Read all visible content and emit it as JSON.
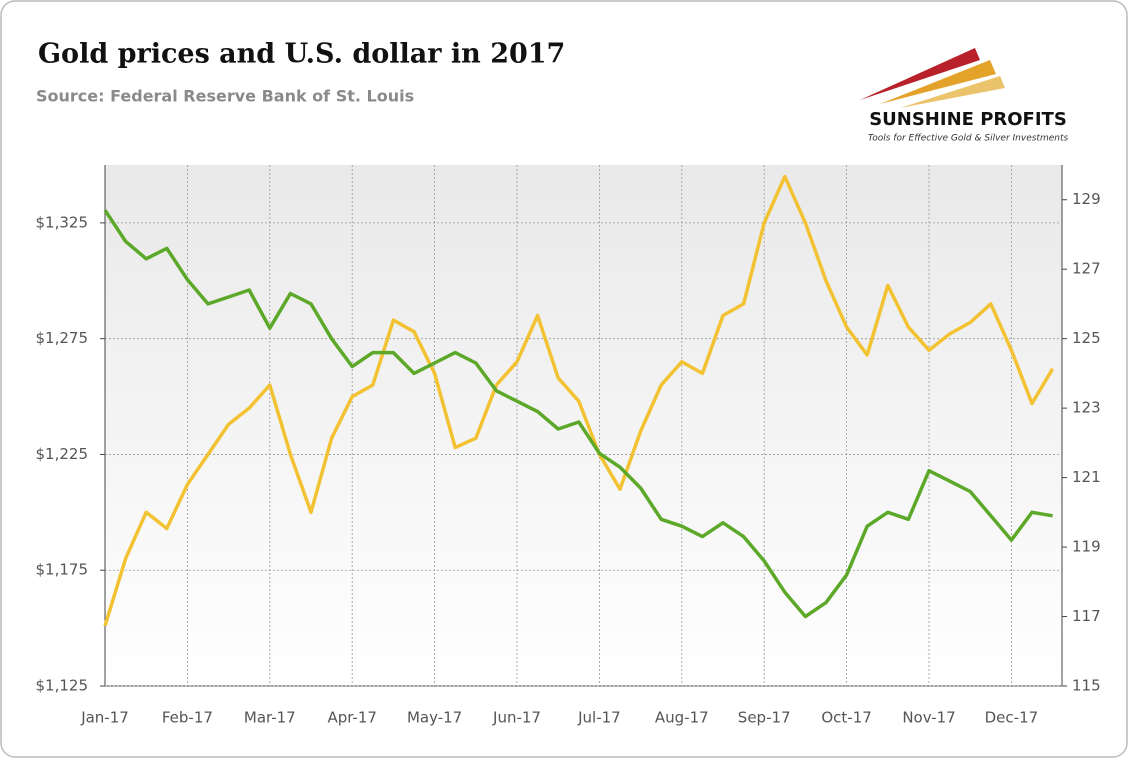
{
  "chart_data": {
    "type": "line",
    "title": "Gold prices and U.S. dollar in 2017",
    "subtitle": "Source: Federal Reserve Bank of St. Louis",
    "categories": [
      "Jan-17",
      null,
      null,
      null,
      "Feb-17",
      null,
      null,
      null,
      "Mar-17",
      null,
      null,
      null,
      "Apr-17",
      null,
      null,
      null,
      "May-17",
      null,
      null,
      null,
      "Jun-17",
      null,
      null,
      null,
      "Jul-17",
      null,
      null,
      null,
      "Aug-17",
      null,
      null,
      null,
      "Sep-17",
      null,
      null,
      null,
      "Oct-17",
      null,
      null,
      null,
      "Nov-17",
      null,
      null,
      null,
      "Dec-17",
      null,
      null
    ],
    "series": [
      {
        "color": "#f2c232",
        "values": [
          1151,
          1180,
          1200,
          1193,
          1212,
          1225,
          1238,
          1245,
          1255,
          1225,
          1200,
          1232,
          1250,
          1255,
          1283,
          1278,
          1260,
          1228,
          1232,
          1255,
          1265,
          1285,
          1258,
          1248,
          1225,
          1210,
          1235,
          1255,
          1265,
          1260,
          1285,
          1290,
          1325,
          1345,
          1325,
          1300,
          1280,
          1268,
          1298,
          1280,
          1270,
          1277,
          1282,
          1290,
          1270,
          1247,
          1262
        ]
      },
      {
        "color": "#5ca829",
        "axis": "y2",
        "values": [
          128.7,
          127.8,
          127.3,
          127.6,
          126.7,
          126.0,
          126.2,
          126.4,
          125.3,
          126.3,
          126.0,
          125.0,
          124.2,
          124.6,
          124.6,
          124.0,
          124.3,
          124.6,
          124.3,
          123.5,
          123.2,
          122.9,
          122.4,
          122.6,
          121.7,
          121.3,
          120.7,
          119.8,
          119.6,
          119.3,
          119.7,
          119.3,
          118.6,
          117.7,
          117.0,
          117.4,
          118.2,
          119.6,
          120.0,
          119.8,
          121.2,
          120.9,
          120.6,
          119.9,
          119.2,
          120.0,
          119.9
        ]
      }
    ],
    "ylim": [
      1125,
      1350
    ],
    "yticks": [
      {
        "value": 1125,
        "label": "$1,125"
      },
      {
        "value": 1175,
        "label": "$1,175"
      },
      {
        "value": 1225,
        "label": "$1,225"
      },
      {
        "value": 1275,
        "label": "$1,275"
      },
      {
        "value": 1325,
        "label": "$1,325"
      }
    ],
    "y2lim": [
      115,
      130
    ],
    "y2ticks": [
      115,
      117,
      119,
      121,
      123,
      125,
      127,
      129
    ],
    "grid": true
  },
  "logo": {
    "name": "SUNSHINE PROFITS",
    "tagline": "Tools for Effective Gold & Silver Investments"
  }
}
